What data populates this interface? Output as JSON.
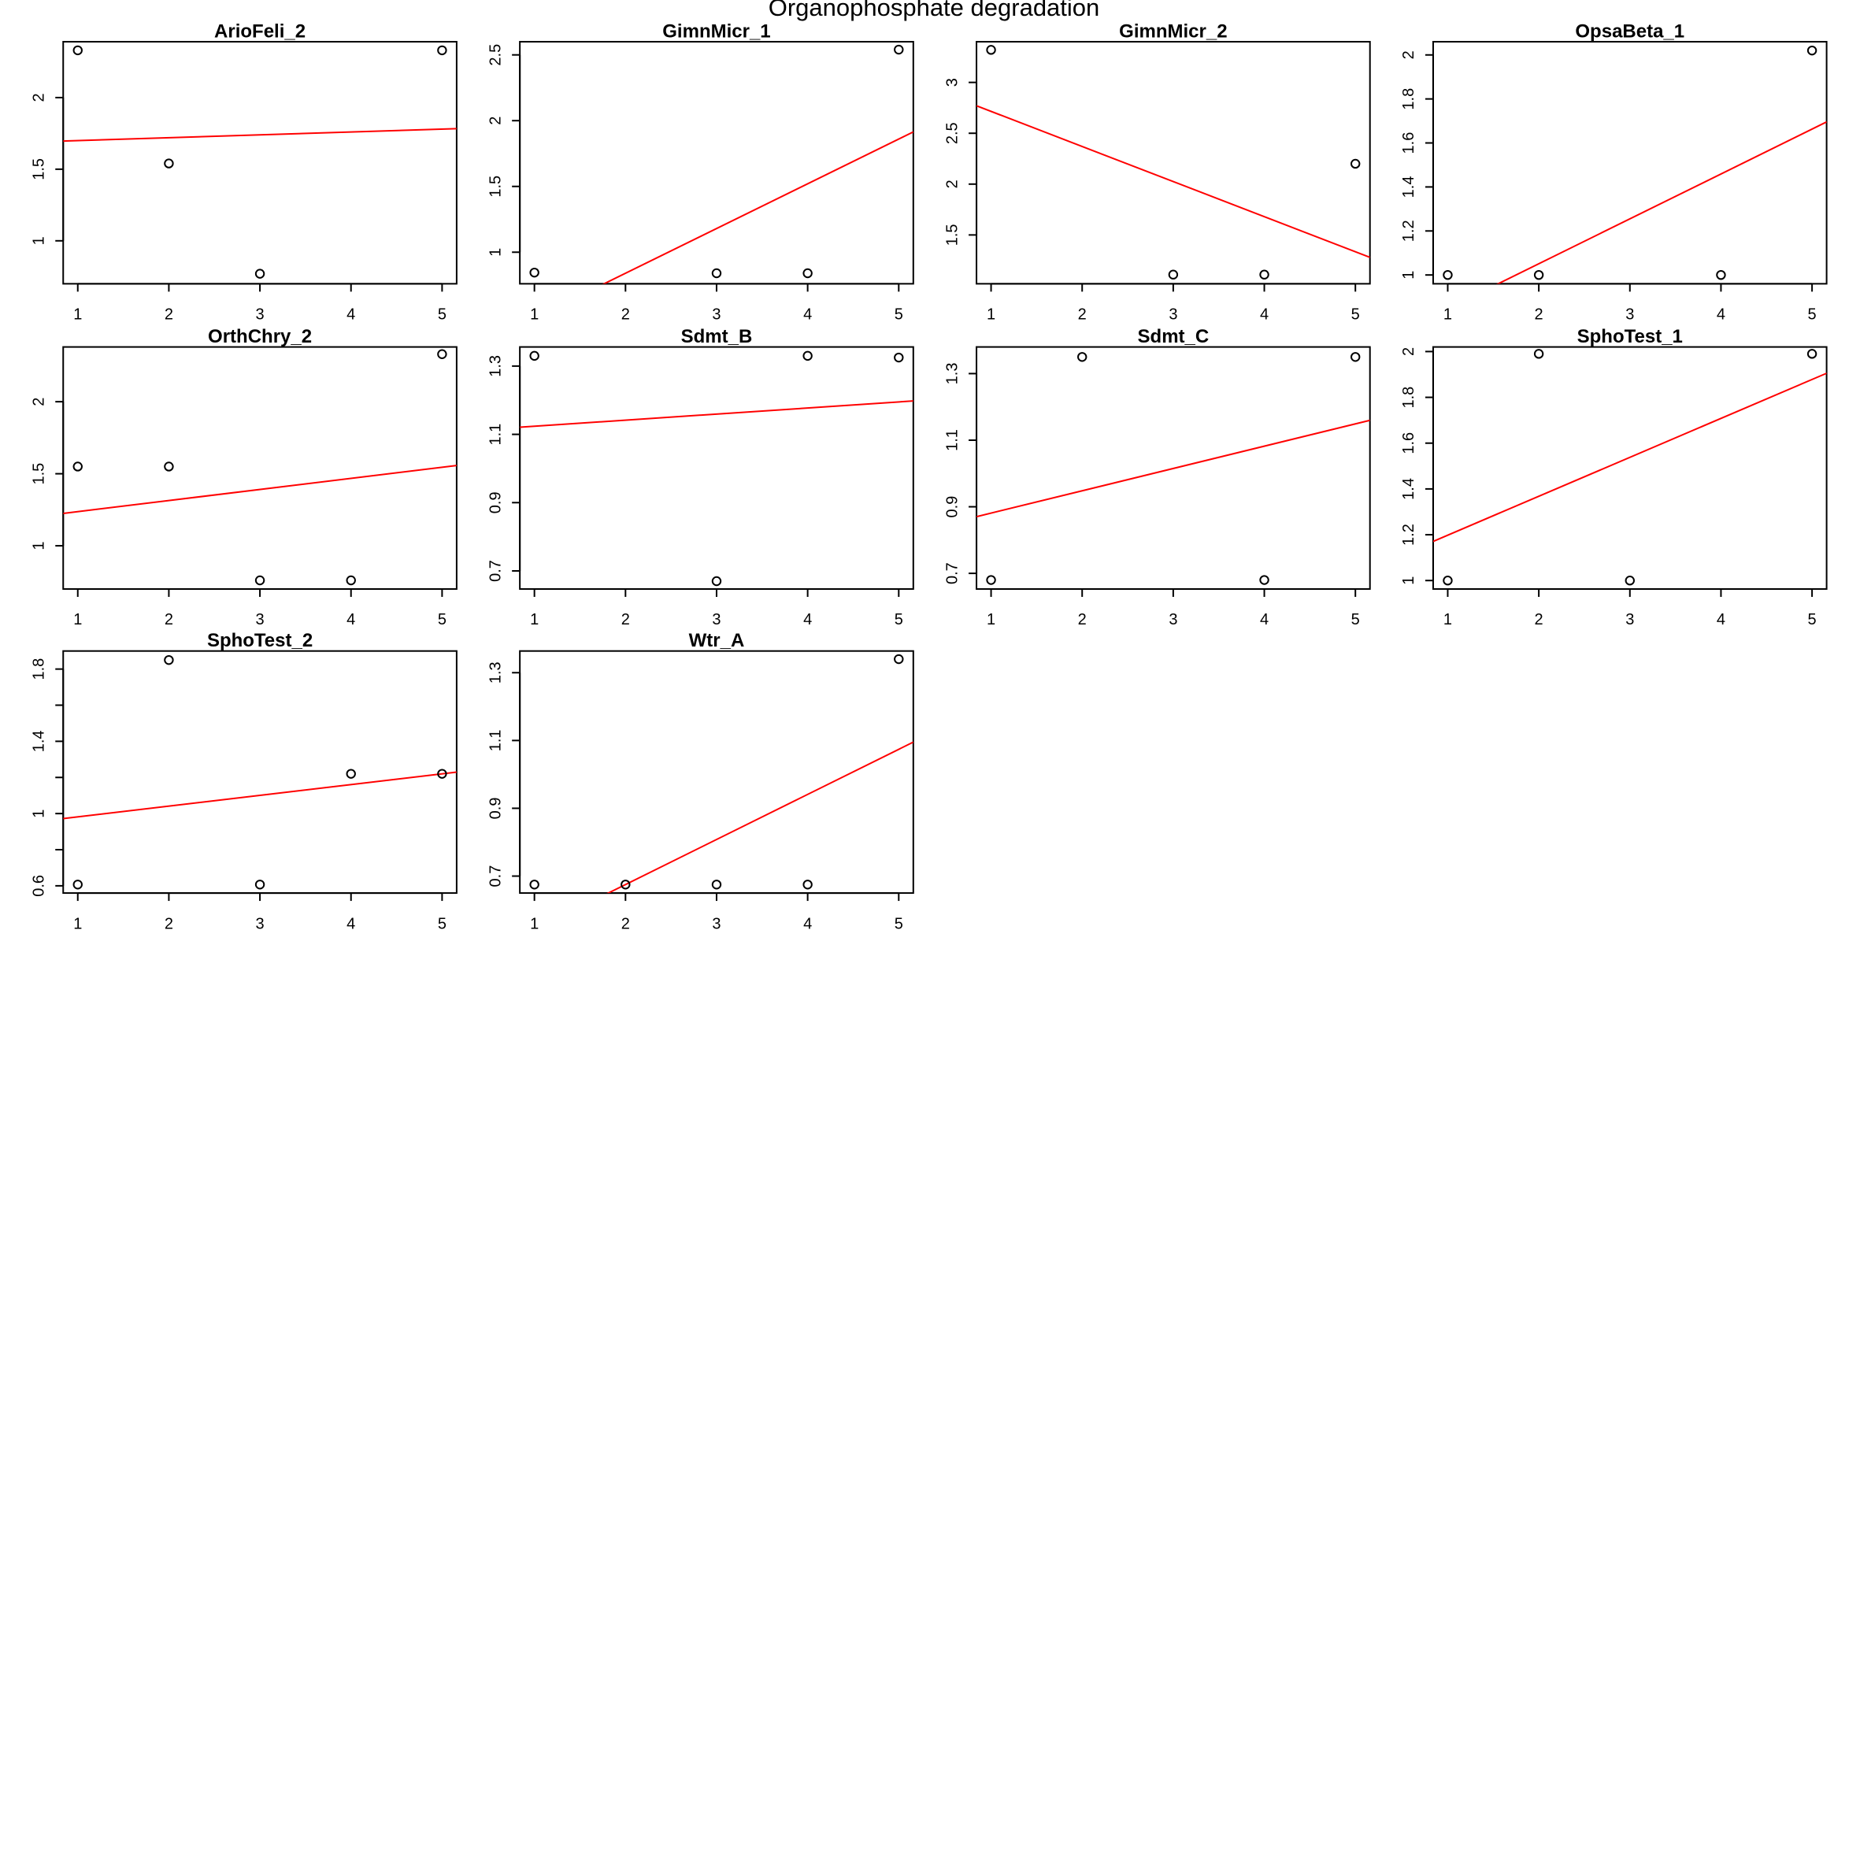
{
  "title": "Organophosphate degradation",
  "chart_data": [
    {
      "type": "scatter",
      "title": "ArioFeli_2",
      "x": [
        1,
        2,
        3,
        5
      ],
      "y": [
        2.33,
        1.54,
        0.77,
        2.33
      ],
      "color": "#000000",
      "trendline": {
        "intercept": 1.68,
        "slope": 0.02,
        "color": "#ff0000"
      },
      "xlim": [
        0.84,
        5.16
      ],
      "xticks": [
        1,
        2,
        3,
        4,
        5
      ],
      "ylim": [
        0.7,
        2.39
      ],
      "yticks": [
        1.0,
        1.5,
        2.0
      ]
    },
    {
      "type": "scatter",
      "title": "GimnMicr_1",
      "x": [
        1,
        3,
        4,
        5
      ],
      "y": [
        0.845,
        0.84,
        0.84,
        2.54
      ],
      "color": "#000000",
      "trendline": {
        "intercept": 0.16,
        "slope": 0.34,
        "color": "#ff0000"
      },
      "xlim": [
        0.84,
        5.16
      ],
      "xticks": [
        1,
        2,
        3,
        4,
        5
      ],
      "ylim": [
        0.76,
        2.6
      ],
      "yticks": [
        1.0,
        1.5,
        2.0,
        2.5
      ]
    },
    {
      "type": "scatter",
      "title": "GimnMicr_2",
      "x": [
        1,
        3,
        4,
        5
      ],
      "y": [
        3.32,
        1.11,
        1.11,
        2.2
      ],
      "color": "#000000",
      "trendline": {
        "intercept": 3.06,
        "slope": -0.345,
        "color": "#ff0000"
      },
      "xlim": [
        0.84,
        5.16
      ],
      "xticks": [
        1,
        2,
        3,
        4,
        5
      ],
      "ylim": [
        1.02,
        3.4
      ],
      "yticks": [
        1.5,
        2.0,
        2.5,
        3.0
      ]
    },
    {
      "type": "scatter",
      "title": "OpsaBeta_1",
      "x": [
        1,
        2,
        4,
        5
      ],
      "y": [
        1.0,
        1.0,
        1.0,
        2.02
      ],
      "color": "#000000",
      "trendline": {
        "intercept": 0.643,
        "slope": 0.204,
        "color": "#ff0000"
      },
      "xlim": [
        0.84,
        5.16
      ],
      "xticks": [
        1,
        2,
        3,
        4,
        5
      ],
      "ylim": [
        0.96,
        2.06
      ],
      "yticks": [
        1.0,
        1.2,
        1.4,
        1.6,
        1.8,
        2.0
      ]
    },
    {
      "type": "scatter",
      "title": "OrthChry_2",
      "x": [
        1,
        2,
        3,
        4,
        5
      ],
      "y": [
        1.55,
        1.55,
        0.76,
        0.76,
        2.33
      ],
      "color": "#000000",
      "trendline": {
        "intercept": 1.16,
        "slope": 0.077,
        "color": "#ff0000"
      },
      "xlim": [
        0.84,
        5.16
      ],
      "xticks": [
        1,
        2,
        3,
        4,
        5
      ],
      "ylim": [
        0.7,
        2.38
      ],
      "yticks": [
        1.0,
        1.5,
        2.0
      ]
    },
    {
      "type": "scatter",
      "title": "Sdmt_B",
      "x": [
        1,
        3,
        4,
        5
      ],
      "y": [
        1.33,
        0.67,
        1.33,
        1.325
      ],
      "color": "#000000",
      "trendline": {
        "intercept": 1.106,
        "slope": 0.0178,
        "color": "#ff0000"
      },
      "xlim": [
        0.84,
        5.16
      ],
      "xticks": [
        1,
        2,
        3,
        4,
        5
      ],
      "ylim": [
        0.647,
        1.356
      ],
      "yticks": [
        0.7,
        0.9,
        1.1,
        1.3
      ]
    },
    {
      "type": "scatter",
      "title": "Sdmt_C",
      "x": [
        1,
        2,
        4,
        5
      ],
      "y": [
        0.68,
        1.35,
        0.68,
        1.35
      ],
      "color": "#000000",
      "trendline": {
        "intercept": 0.814,
        "slope": 0.067,
        "color": "#ff0000"
      },
      "xlim": [
        0.84,
        5.16
      ],
      "xticks": [
        1,
        2,
        3,
        4,
        5
      ],
      "ylim": [
        0.653,
        1.38
      ],
      "yticks": [
        0.7,
        0.9,
        1.1,
        1.3
      ]
    },
    {
      "type": "scatter",
      "title": "SphoTest_1",
      "x": [
        1,
        2,
        3,
        5
      ],
      "y": [
        1.0,
        1.99,
        1.0,
        1.99
      ],
      "color": "#000000",
      "trendline": {
        "intercept": 1.028,
        "slope": 0.17,
        "color": "#ff0000"
      },
      "xlim": [
        0.84,
        5.16
      ],
      "xticks": [
        1,
        2,
        3,
        4,
        5
      ],
      "ylim": [
        0.963,
        2.02
      ],
      "yticks": [
        1.0,
        1.2,
        1.4,
        1.6,
        1.8,
        2.0
      ]
    },
    {
      "type": "scatter",
      "title": "SphoTest_2",
      "x": [
        1,
        2,
        3,
        4,
        5
      ],
      "y": [
        0.607,
        1.85,
        0.607,
        1.22,
        1.22
      ],
      "color": "#000000",
      "trendline": {
        "intercept": 0.922,
        "slope": 0.0596,
        "color": "#ff0000"
      },
      "xlim": [
        0.84,
        5.16
      ],
      "xticks": [
        1,
        2,
        3,
        4,
        5
      ],
      "ylim": [
        0.56,
        1.9
      ],
      "yticks": [
        0.6,
        1.0,
        1.4,
        1.8
      ],
      "yminor_ticks": [
        0.8,
        1.2,
        1.6
      ]
    },
    {
      "type": "scatter",
      "title": "Wtr_A",
      "x": [
        1,
        2,
        3,
        4,
        5
      ],
      "y": [
        0.675,
        0.675,
        0.675,
        0.675,
        1.34
      ],
      "color": "#000000",
      "trendline": {
        "intercept": 0.409,
        "slope": 0.133,
        "color": "#ff0000"
      },
      "xlim": [
        0.84,
        5.16
      ],
      "xticks": [
        1,
        2,
        3,
        4,
        5
      ],
      "ylim": [
        0.65,
        1.364
      ],
      "yticks": [
        0.7,
        0.9,
        1.1,
        1.3
      ]
    }
  ]
}
